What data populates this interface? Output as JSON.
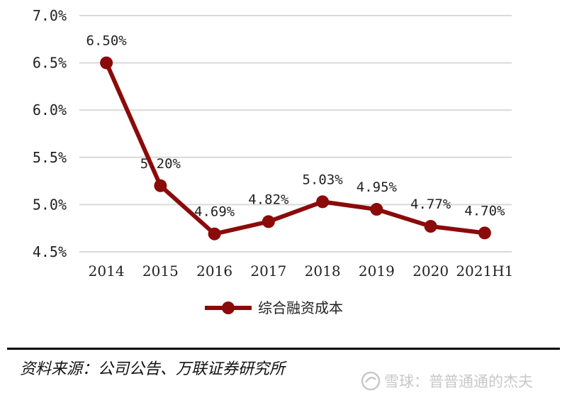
{
  "chart_data": {
    "type": "line",
    "categories": [
      "2014",
      "2015",
      "2016",
      "2017",
      "2018",
      "2019",
      "2020",
      "2021H1"
    ],
    "series": [
      {
        "name": "综合融资成本",
        "values": [
          6.5,
          5.2,
          4.69,
          4.82,
          5.03,
          4.95,
          4.77,
          4.7
        ],
        "data_labels": [
          "6.50%",
          "5.20%",
          "4.69%",
          "4.82%",
          "5.03%",
          "4.95%",
          "4.77%",
          "4.70%"
        ],
        "color": "#8b0a0a"
      }
    ],
    "ylim": [
      4.5,
      7.0
    ],
    "yticks": [
      4.5,
      5.0,
      5.5,
      6.0,
      6.5,
      7.0
    ],
    "ytick_labels": [
      "4.5%",
      "5.0%",
      "5.5%",
      "6.0%",
      "6.5%",
      "7.0%"
    ],
    "grid": true,
    "legend_position": "bottom"
  },
  "source": "资料来源：公司公告、万联证券研究所",
  "watermark": "雪球：普普通通的杰夫",
  "colors": {
    "series": "#8b0a0a",
    "grid": "#d9d9d9",
    "watermark": "#c8c8c8"
  },
  "icons": {
    "watermark_logo": "snowball-logo-icon"
  }
}
